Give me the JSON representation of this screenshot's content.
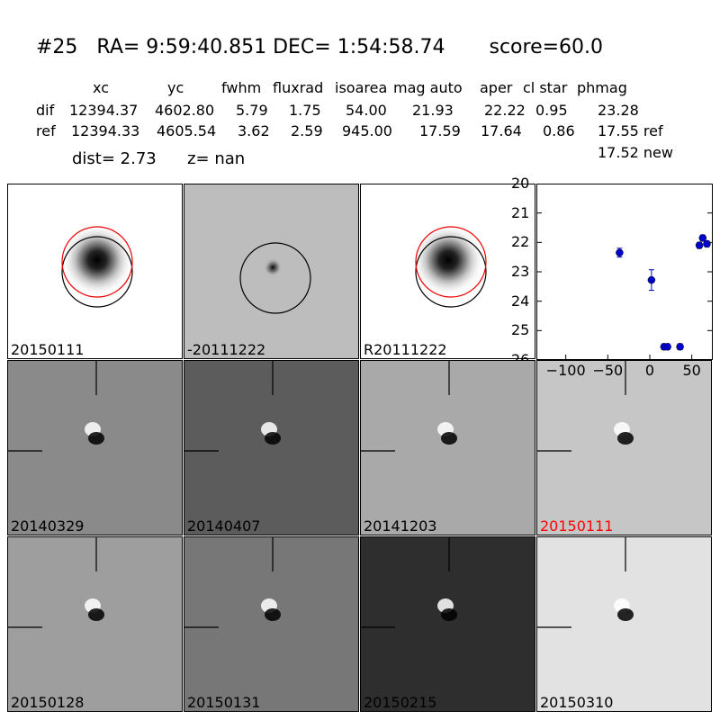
{
  "header": {
    "id": "#25",
    "ra": "RA= 9:59:40.851",
    "dec": "DEC= 1:54:58.74",
    "score": "score=60.0"
  },
  "table": {
    "columns": [
      "xc",
      "yc",
      "fwhm",
      "fluxrad",
      "isoarea",
      "mag auto",
      "aper",
      "cl star",
      "phmag"
    ],
    "dif": {
      "label": "dif",
      "values": [
        "12394.37",
        "4602.80",
        "5.79",
        "1.75",
        "54.00",
        "21.93",
        "22.22",
        "0.95",
        "23.28"
      ]
    },
    "ref": {
      "label": "ref",
      "values": [
        "12394.33",
        "4605.54",
        "3.62",
        "2.59",
        "945.00",
        "17.59",
        "17.64",
        "0.86",
        "17.55 ref"
      ]
    },
    "new_phmag": "17.52 new"
  },
  "dist_line": {
    "dist": "dist=  2.73",
    "z": "z=   nan"
  },
  "top_panels": [
    {
      "label": "20150111",
      "bg": "#ffffff"
    },
    {
      "label": "-20111222",
      "bg": "#bdbdbd"
    },
    {
      "label": "R20111222",
      "bg": "#ffffff"
    }
  ],
  "grid_panels": [
    {
      "label": "20140329",
      "bg": "#8a8a8a",
      "label_color": "#000000"
    },
    {
      "label": "20140407",
      "bg": "#5c5c5c",
      "label_color": "#000000"
    },
    {
      "label": "20141203",
      "bg": "#a9a9a9",
      "label_color": "#000000"
    },
    {
      "label": "20150111",
      "bg": "#c6c6c6",
      "label_color": "#ff0000"
    },
    {
      "label": "20150128",
      "bg": "#9e9e9e",
      "label_color": "#000000"
    },
    {
      "label": "20150131",
      "bg": "#777777",
      "label_color": "#000000"
    },
    {
      "label": "20150215",
      "bg": "#2e2e2e",
      "label_color": "#000000"
    },
    {
      "label": "20150310",
      "bg": "#e2e2e2",
      "label_color": "#000000"
    }
  ],
  "chart_data": {
    "type": "scatter",
    "y_inverted": true,
    "ylim": [
      26,
      20
    ],
    "xlim": [
      -135,
      75
    ],
    "y_ticks": [
      "20",
      "21",
      "22",
      "23",
      "24",
      "25",
      "26"
    ],
    "x_ticks": [
      "−100",
      "−50",
      "0",
      "50"
    ],
    "color": "#0000cc",
    "points": [
      {
        "x": -36,
        "y": 22.35,
        "err": 0.15
      },
      {
        "x": 2,
        "y": 23.28,
        "err": 0.35
      },
      {
        "x": 17,
        "y": 25.55,
        "err": 0.1
      },
      {
        "x": 21,
        "y": 25.55,
        "err": 0.1
      },
      {
        "x": 36,
        "y": 25.55,
        "err": 0.1
      },
      {
        "x": 59,
        "y": 22.1,
        "err": 0.1
      },
      {
        "x": 63,
        "y": 21.85,
        "err": 0.1
      },
      {
        "x": 68,
        "y": 22.05,
        "err": 0.1
      }
    ]
  }
}
